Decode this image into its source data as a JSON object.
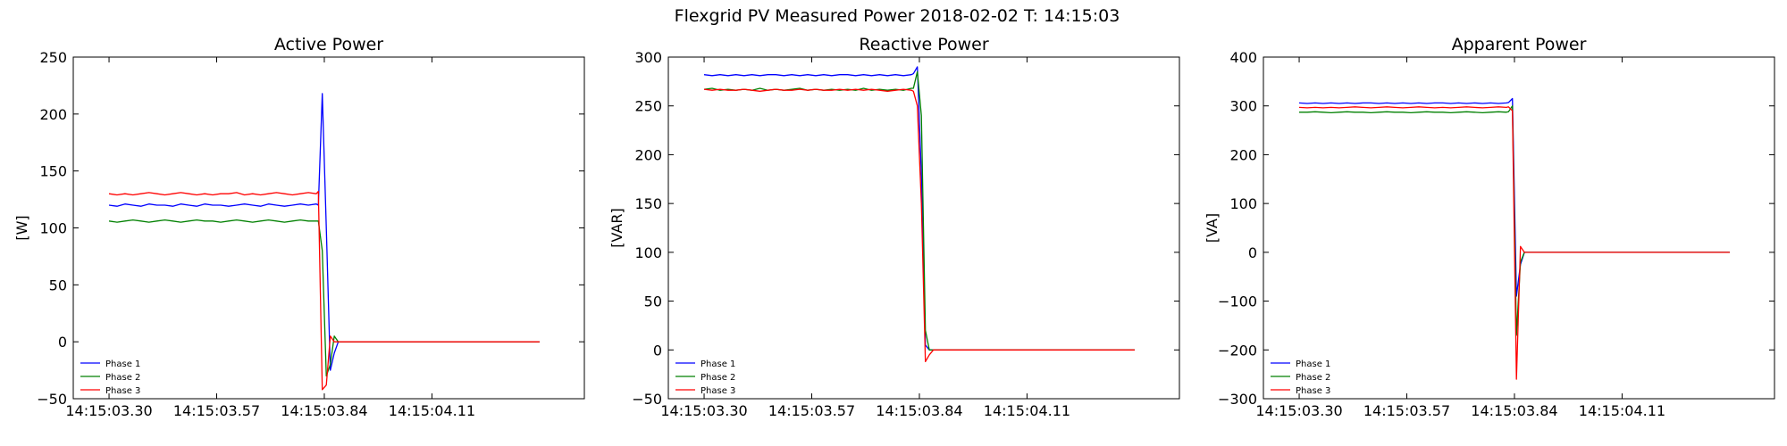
{
  "figure_title": "Flexgrid PV Measured Power 2018-02-02 T: 14:15:03",
  "colors": {
    "phase1": "#0000ff",
    "phase2": "#008000",
    "phase3": "#ff0000"
  },
  "chart_data": [
    {
      "type": "line",
      "title": "Active Power",
      "xlabel": "",
      "ylabel": "[W]",
      "xlim": [
        0,
        1
      ],
      "ylim": [
        -50,
        250
      ],
      "yticks": [
        -50,
        0,
        50,
        100,
        150,
        200,
        250
      ],
      "xticks": [
        {
          "label": "14:15:03.30",
          "pos": 0.0
        },
        {
          "label": "14:15:03.57",
          "pos": 0.27
        },
        {
          "label": "14:15:03.84",
          "pos": 0.54
        },
        {
          "label": "14:15:04.11",
          "pos": 0.81
        }
      ],
      "grid": false,
      "legend": "lower-left",
      "series": [
        {
          "name": "Phase 1",
          "color": "#0000ff",
          "x": [
            0.0,
            0.02,
            0.04,
            0.06,
            0.08,
            0.1,
            0.12,
            0.14,
            0.16,
            0.18,
            0.2,
            0.22,
            0.24,
            0.26,
            0.28,
            0.3,
            0.32,
            0.34,
            0.36,
            0.38,
            0.4,
            0.42,
            0.44,
            0.46,
            0.48,
            0.5,
            0.52,
            0.525,
            0.535,
            0.545,
            0.555,
            0.565,
            0.575,
            0.6,
            0.65,
            0.7,
            0.8,
            0.9,
            1.0,
            1.08
          ],
          "y": [
            120,
            119,
            121,
            120,
            119,
            121,
            120,
            120,
            119,
            121,
            120,
            119,
            121,
            120,
            120,
            119,
            120,
            121,
            120,
            119,
            121,
            120,
            119,
            120,
            121,
            120,
            121,
            120,
            218,
            100,
            -25,
            -10,
            0,
            0,
            0,
            0,
            0,
            0,
            0,
            0
          ]
        },
        {
          "name": "Phase 2",
          "color": "#008000",
          "x": [
            0.0,
            0.02,
            0.04,
            0.06,
            0.08,
            0.1,
            0.12,
            0.14,
            0.16,
            0.18,
            0.2,
            0.22,
            0.24,
            0.26,
            0.28,
            0.3,
            0.32,
            0.34,
            0.36,
            0.38,
            0.4,
            0.42,
            0.44,
            0.46,
            0.48,
            0.5,
            0.52,
            0.525,
            0.535,
            0.545,
            0.555,
            0.565,
            0.575,
            0.6,
            0.65,
            0.7,
            0.8,
            0.9,
            1.0,
            1.08
          ],
          "y": [
            106,
            105,
            106,
            107,
            106,
            105,
            106,
            107,
            106,
            105,
            106,
            107,
            106,
            106,
            105,
            106,
            107,
            106,
            105,
            106,
            107,
            106,
            105,
            106,
            107,
            106,
            106,
            106,
            80,
            -30,
            -20,
            5,
            0,
            0,
            0,
            0,
            0,
            0,
            0,
            0
          ]
        },
        {
          "name": "Phase 3",
          "color": "#ff0000",
          "x": [
            0.0,
            0.02,
            0.04,
            0.06,
            0.08,
            0.1,
            0.12,
            0.14,
            0.16,
            0.18,
            0.2,
            0.22,
            0.24,
            0.26,
            0.28,
            0.3,
            0.32,
            0.34,
            0.36,
            0.38,
            0.4,
            0.42,
            0.44,
            0.46,
            0.48,
            0.5,
            0.52,
            0.525,
            0.535,
            0.545,
            0.555,
            0.565,
            0.575,
            0.6,
            0.65,
            0.7,
            0.8,
            0.9,
            1.0,
            1.08
          ],
          "y": [
            130,
            129,
            130,
            129,
            130,
            131,
            130,
            129,
            130,
            131,
            130,
            129,
            130,
            129,
            130,
            130,
            131,
            129,
            130,
            129,
            130,
            131,
            130,
            129,
            130,
            131,
            130,
            132,
            -42,
            -38,
            5,
            0,
            0,
            0,
            0,
            0,
            0,
            0,
            0,
            0
          ]
        }
      ]
    },
    {
      "type": "line",
      "title": "Reactive Power",
      "xlabel": "",
      "ylabel": "[VAR]",
      "xlim": [
        0,
        1
      ],
      "ylim": [
        -50,
        300
      ],
      "yticks": [
        -50,
        0,
        50,
        100,
        150,
        200,
        250,
        300
      ],
      "xticks": [
        {
          "label": "14:15:03.30",
          "pos": 0.0
        },
        {
          "label": "14:15:03.57",
          "pos": 0.27
        },
        {
          "label": "14:15:03.84",
          "pos": 0.54
        },
        {
          "label": "14:15:04.11",
          "pos": 0.81
        }
      ],
      "grid": false,
      "legend": "lower-left",
      "series": [
        {
          "name": "Phase 1",
          "color": "#0000ff",
          "x": [
            0.0,
            0.02,
            0.04,
            0.06,
            0.08,
            0.1,
            0.12,
            0.14,
            0.16,
            0.18,
            0.2,
            0.22,
            0.24,
            0.26,
            0.28,
            0.3,
            0.32,
            0.34,
            0.36,
            0.38,
            0.4,
            0.42,
            0.44,
            0.46,
            0.48,
            0.5,
            0.52,
            0.525,
            0.535,
            0.545,
            0.555,
            0.565,
            0.575,
            0.6,
            0.7,
            0.8,
            0.9,
            1.0,
            1.08
          ],
          "y": [
            282,
            281,
            282,
            281,
            282,
            281,
            282,
            281,
            282,
            282,
            281,
            282,
            281,
            282,
            281,
            282,
            281,
            282,
            282,
            281,
            282,
            281,
            282,
            281,
            282,
            281,
            282,
            283,
            290,
            180,
            5,
            0,
            0,
            0,
            0,
            0,
            0,
            0,
            0
          ]
        },
        {
          "name": "Phase 2",
          "color": "#008000",
          "x": [
            0.0,
            0.02,
            0.04,
            0.06,
            0.08,
            0.1,
            0.12,
            0.14,
            0.16,
            0.18,
            0.2,
            0.22,
            0.24,
            0.26,
            0.28,
            0.3,
            0.32,
            0.34,
            0.36,
            0.38,
            0.4,
            0.42,
            0.44,
            0.46,
            0.48,
            0.5,
            0.52,
            0.525,
            0.535,
            0.545,
            0.555,
            0.565,
            0.575,
            0.6,
            0.7,
            0.8,
            0.9,
            1.0,
            1.08
          ],
          "y": [
            267,
            268,
            266,
            267,
            266,
            267,
            266,
            268,
            266,
            267,
            266,
            267,
            268,
            266,
            267,
            266,
            267,
            266,
            267,
            266,
            268,
            266,
            267,
            266,
            267,
            266,
            268,
            268,
            285,
            240,
            20,
            0,
            0,
            0,
            0,
            0,
            0,
            0,
            0
          ]
        },
        {
          "name": "Phase 3",
          "color": "#ff0000",
          "x": [
            0.0,
            0.02,
            0.04,
            0.06,
            0.08,
            0.1,
            0.12,
            0.14,
            0.16,
            0.18,
            0.2,
            0.22,
            0.24,
            0.26,
            0.28,
            0.3,
            0.32,
            0.34,
            0.36,
            0.38,
            0.4,
            0.42,
            0.44,
            0.46,
            0.48,
            0.5,
            0.52,
            0.525,
            0.535,
            0.545,
            0.555,
            0.565,
            0.575,
            0.6,
            0.7,
            0.8,
            0.9,
            1.0,
            1.08
          ],
          "y": [
            267,
            266,
            267,
            266,
            266,
            267,
            266,
            265,
            266,
            267,
            266,
            266,
            267,
            266,
            267,
            266,
            266,
            267,
            266,
            267,
            266,
            267,
            266,
            265,
            266,
            267,
            266,
            265,
            250,
            150,
            -12,
            -5,
            0,
            0,
            0,
            0,
            0,
            0,
            0
          ]
        }
      ]
    },
    {
      "type": "line",
      "title": "Apparent Power",
      "xlabel": "",
      "ylabel": "[VA]",
      "xlim": [
        0,
        1
      ],
      "ylim": [
        -300,
        400
      ],
      "yticks": [
        -300,
        -200,
        -100,
        0,
        100,
        200,
        300,
        400
      ],
      "xticks": [
        {
          "label": "14:15:03.30",
          "pos": 0.0
        },
        {
          "label": "14:15:03.57",
          "pos": 0.27
        },
        {
          "label": "14:15:03.84",
          "pos": 0.54
        },
        {
          "label": "14:15:04.11",
          "pos": 0.81
        }
      ],
      "grid": false,
      "legend": "lower-left",
      "series": [
        {
          "name": "Phase 1",
          "color": "#0000ff",
          "x": [
            0.0,
            0.02,
            0.04,
            0.06,
            0.08,
            0.1,
            0.12,
            0.14,
            0.16,
            0.18,
            0.2,
            0.22,
            0.24,
            0.26,
            0.28,
            0.3,
            0.32,
            0.34,
            0.36,
            0.38,
            0.4,
            0.42,
            0.44,
            0.46,
            0.48,
            0.5,
            0.52,
            0.525,
            0.535,
            0.545,
            0.555,
            0.565,
            0.575,
            0.6,
            0.7,
            0.8,
            0.9,
            1.0,
            1.08
          ],
          "y": [
            306,
            305,
            306,
            305,
            306,
            305,
            306,
            305,
            306,
            306,
            305,
            306,
            305,
            306,
            305,
            306,
            305,
            306,
            306,
            305,
            306,
            305,
            306,
            305,
            306,
            305,
            306,
            307,
            315,
            -90,
            -25,
            0,
            0,
            0,
            0,
            0,
            0,
            0,
            0
          ]
        },
        {
          "name": "Phase 2",
          "color": "#008000",
          "x": [
            0.0,
            0.02,
            0.04,
            0.06,
            0.08,
            0.1,
            0.12,
            0.14,
            0.16,
            0.18,
            0.2,
            0.22,
            0.24,
            0.26,
            0.28,
            0.3,
            0.32,
            0.34,
            0.36,
            0.38,
            0.4,
            0.42,
            0.44,
            0.46,
            0.48,
            0.5,
            0.52,
            0.525,
            0.535,
            0.545,
            0.555,
            0.565,
            0.575,
            0.6,
            0.7,
            0.8,
            0.9,
            1.0,
            1.08
          ],
          "y": [
            287,
            287,
            288,
            287,
            286,
            287,
            288,
            287,
            287,
            286,
            287,
            288,
            287,
            287,
            286,
            287,
            288,
            287,
            287,
            286,
            287,
            288,
            287,
            286,
            287,
            288,
            287,
            288,
            300,
            -170,
            -20,
            0,
            0,
            0,
            0,
            0,
            0,
            0,
            0
          ]
        },
        {
          "name": "Phase 3",
          "color": "#ff0000",
          "x": [
            0.0,
            0.02,
            0.04,
            0.06,
            0.08,
            0.1,
            0.12,
            0.14,
            0.16,
            0.18,
            0.2,
            0.22,
            0.24,
            0.26,
            0.28,
            0.3,
            0.32,
            0.34,
            0.36,
            0.38,
            0.4,
            0.42,
            0.44,
            0.46,
            0.48,
            0.5,
            0.52,
            0.525,
            0.535,
            0.545,
            0.555,
            0.565,
            0.575,
            0.6,
            0.7,
            0.8,
            0.9,
            1.0,
            1.08
          ],
          "y": [
            297,
            296,
            297,
            296,
            297,
            296,
            297,
            298,
            297,
            296,
            297,
            298,
            297,
            296,
            297,
            298,
            297,
            296,
            297,
            296,
            297,
            298,
            297,
            296,
            297,
            298,
            297,
            298,
            290,
            -260,
            12,
            0,
            0,
            0,
            0,
            0,
            0,
            0,
            0
          ]
        }
      ]
    }
  ]
}
